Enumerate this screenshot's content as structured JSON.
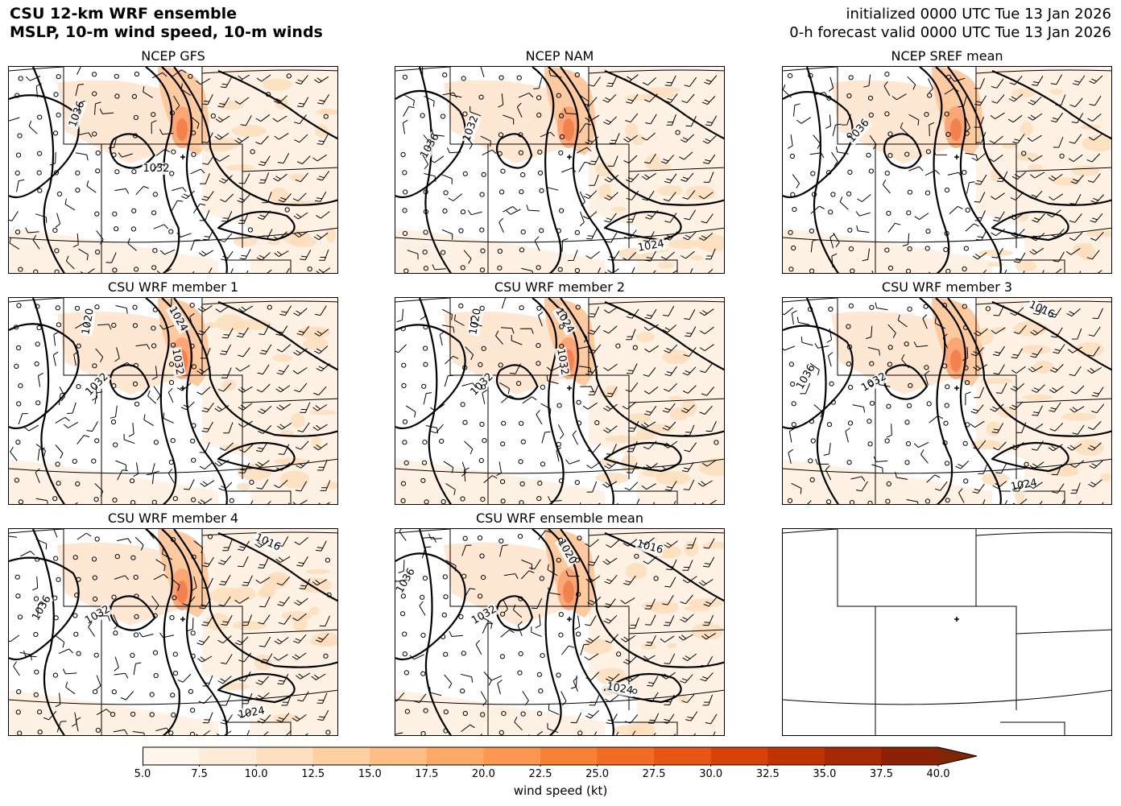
{
  "header": {
    "title_line1": "CSU 12-km WRF ensemble",
    "title_line2": "MSLP, 10-m wind speed, 10-m winds",
    "init_line": "initialized 0000 UTC Tue 13 Jan 2026",
    "valid_line": "0-h forecast valid 0000 UTC Tue 13 Jan 2026"
  },
  "panels": [
    {
      "title": "NCEP GFS",
      "labels": [
        "1036",
        "1032"
      ]
    },
    {
      "title": "NCEP NAM",
      "labels": [
        "1032",
        "1036",
        "1024"
      ]
    },
    {
      "title": "NCEP SREF mean",
      "labels": [
        "1036"
      ]
    },
    {
      "title": "CSU WRF member 1",
      "labels": [
        "1020",
        "1024",
        "1032",
        "1032"
      ]
    },
    {
      "title": "CSU WRF member 2",
      "labels": [
        "1020",
        "1024",
        "1032",
        "1032"
      ]
    },
    {
      "title": "CSU WRF member 3",
      "labels": [
        "1016",
        "1036",
        "1032",
        "1024"
      ]
    },
    {
      "title": "CSU WRF member 4",
      "labels": [
        "1016",
        "1036",
        "1032",
        "1024"
      ]
    },
    {
      "title": "CSU WRF ensemble mean",
      "labels": [
        "1020",
        "1016",
        "1036",
        "1032",
        "1024"
      ]
    },
    {
      "title": "",
      "labels": []
    }
  ],
  "colorbar": {
    "label": "wind speed (kt)",
    "ticks": [
      "5.0",
      "7.5",
      "10.0",
      "12.5",
      "15.0",
      "17.5",
      "20.0",
      "22.5",
      "25.0",
      "27.5",
      "30.0",
      "32.5",
      "35.0",
      "37.5",
      "40.0"
    ],
    "colors": [
      "#fff5eb",
      "#feebd7",
      "#fedfbf",
      "#fdcfa1",
      "#fdbd83",
      "#fdaa68",
      "#fd964e",
      "#f98136",
      "#f26c24",
      "#e75713",
      "#d84208",
      "#c23302",
      "#a72903",
      "#8c2104"
    ],
    "extend_color": "#7f2704"
  },
  "map": {
    "state_line_color": "#000000",
    "isobar_color": "#000000",
    "shading_color": "#fdcfa1",
    "max_color": "#e75713"
  }
}
